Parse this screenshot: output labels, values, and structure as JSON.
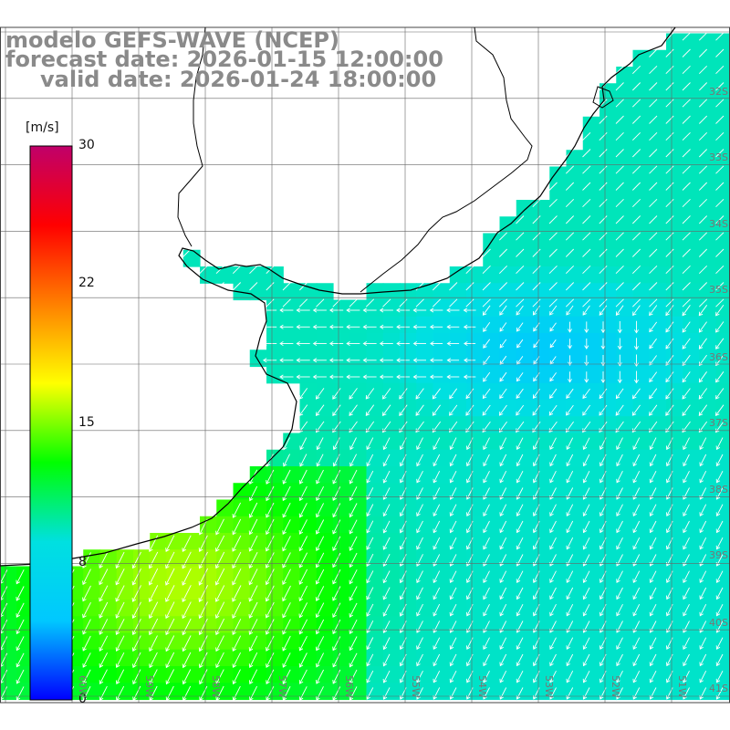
{
  "title": {
    "line1": "modelo GEFS-WAVE (NCEP)",
    "line2": "forecast date: 2026-01-15 12:00:00",
    "line3": "valid date: 2026-01-24 18:00:00"
  },
  "colorbar": {
    "unit": "[m/s]",
    "ticks": [
      "30",
      "22",
      "15",
      "8",
      "0"
    ],
    "min": 0,
    "max": 30,
    "colors": [
      "#0000ff",
      "#00c8ff",
      "#00e0e0",
      "#00ff00",
      "#ffff00",
      "#ff8000",
      "#ff0000",
      "#c0006a"
    ]
  },
  "lat_labels": [
    "32S",
    "33S",
    "34S",
    "35S",
    "36S",
    "37S",
    "38S",
    "39S",
    "40S",
    "41S"
  ],
  "lon_labels": [
    "60W",
    "59W",
    "58W",
    "57W",
    "56W",
    "55W",
    "54W",
    "53W",
    "52W",
    "51W"
  ],
  "chart_data": {
    "type": "heatmap",
    "variable": "wind speed",
    "unit": "m/s",
    "x_axis": "longitude",
    "y_axis": "latitude",
    "xlim": [
      "61W",
      "50W"
    ],
    "ylim": [
      "41S",
      "31S"
    ],
    "regions": [
      {
        "area": "Rio de la Plata estuary",
        "speed_ms": 9,
        "direction": "from E"
      },
      {
        "area": "offshore Uruguay near 35-36S 53-55W",
        "speed_ms": 5,
        "direction": "from E/NE"
      },
      {
        "area": "southern Brazil coast 32-34S",
        "speed_ms": 8,
        "direction": "from NE"
      },
      {
        "area": "Buenos Aires shelf 38-40S 58-60W",
        "speed_ms": 13,
        "direction": "from NE"
      },
      {
        "area": "open ocean 38-41S 51-55W",
        "speed_ms": 9,
        "direction": "from NE"
      }
    ]
  }
}
